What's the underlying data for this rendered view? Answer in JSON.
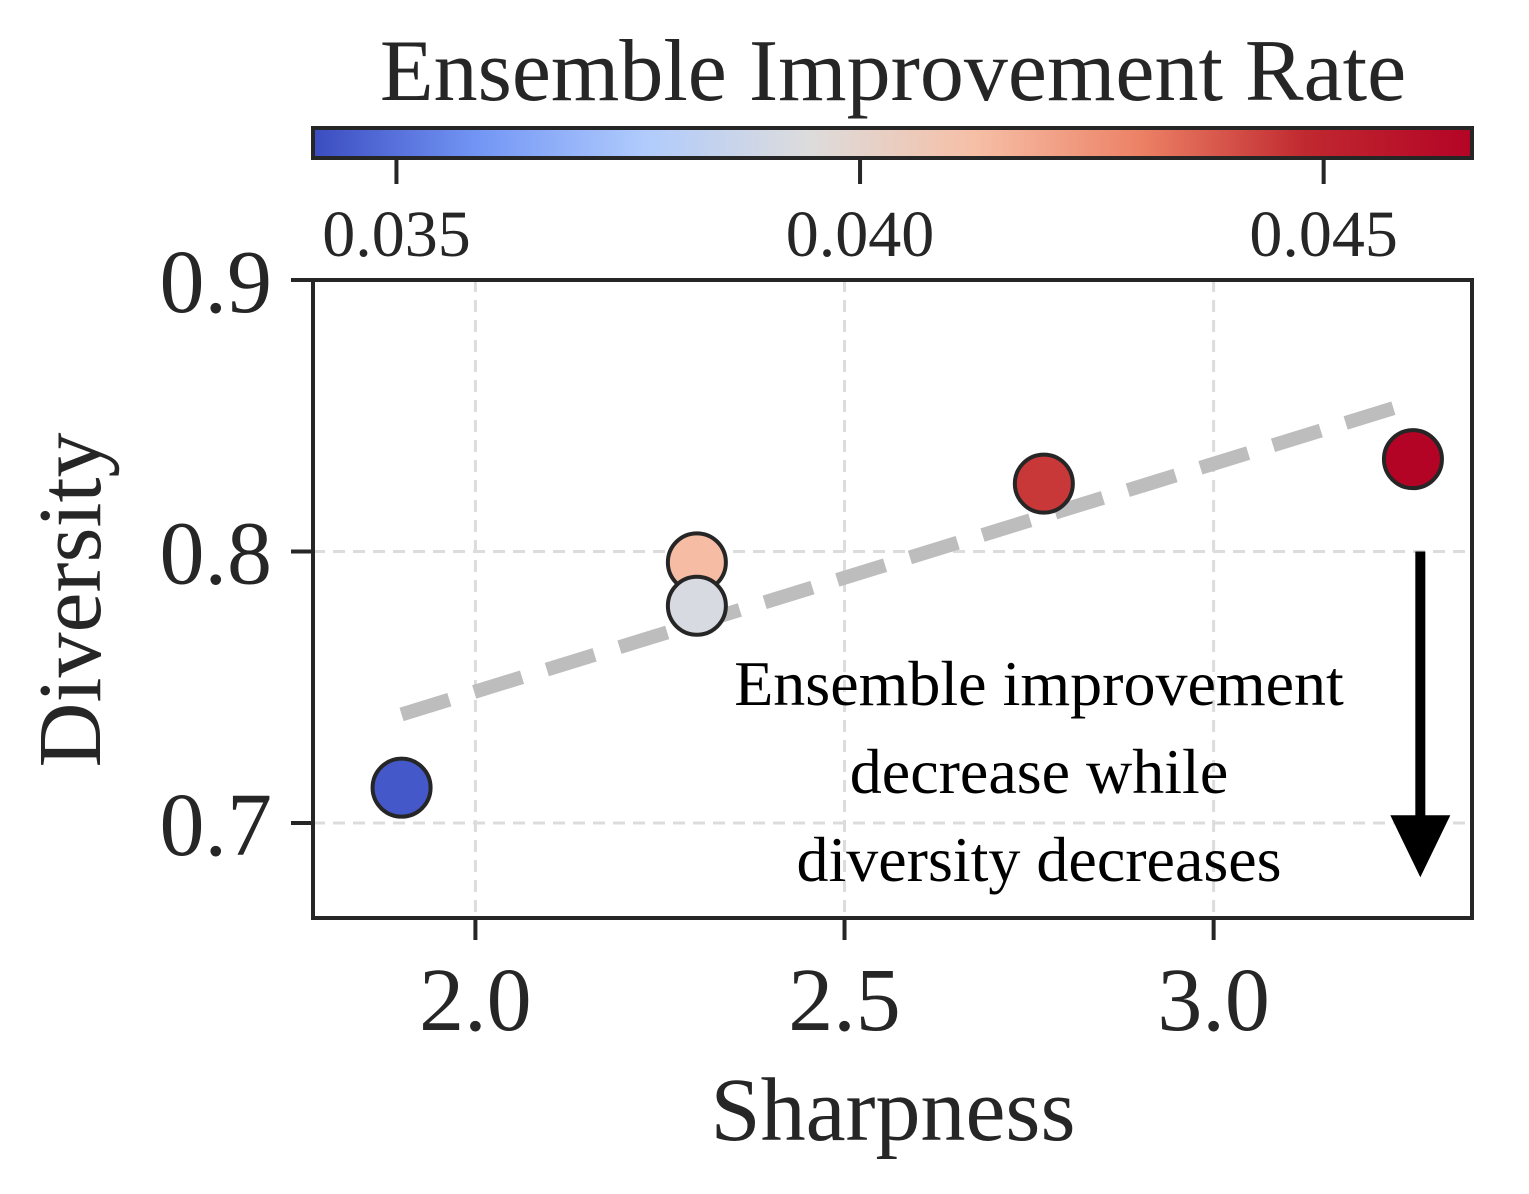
{
  "chart_data": {
    "type": "scatter",
    "xlabel": "Sharpness",
    "ylabel": "Diversity",
    "xlim": [
      1.78,
      3.35
    ],
    "ylim": [
      0.665,
      0.9
    ],
    "x_ticks": [
      2.0,
      2.5,
      3.0
    ],
    "x_tick_labels": [
      "2.0",
      "2.5",
      "3.0"
    ],
    "y_ticks": [
      0.7,
      0.8,
      0.9
    ],
    "y_tick_labels": [
      "0.7",
      "0.8",
      "0.9"
    ],
    "grid": true,
    "points": [
      {
        "x": 1.9,
        "y": 0.713,
        "color_value": 0.0344
      },
      {
        "x": 2.3,
        "y": 0.796,
        "color_value": 0.0413
      },
      {
        "x": 2.3,
        "y": 0.78,
        "color_value": 0.0392
      },
      {
        "x": 2.77,
        "y": 0.825,
        "color_value": 0.0445
      },
      {
        "x": 3.27,
        "y": 0.834,
        "color_value": 0.0466
      }
    ],
    "trend_line": {
      "style": "dashed",
      "x": [
        1.9,
        3.27
      ],
      "y": [
        0.74,
        0.855
      ]
    },
    "colorbar": {
      "label": "Ensemble Improvement Rate",
      "range": [
        0.0341,
        0.0466
      ],
      "ticks": [
        0.035,
        0.04,
        0.045
      ],
      "tick_labels": [
        "0.035",
        "0.040",
        "0.045"
      ],
      "colormap": "coolwarm",
      "colors": [
        "#3b4cc0",
        "#7396f5",
        "#b0cbfc",
        "#dddcdc",
        "#f6bfa6",
        "#ec8165",
        "#c0282f",
        "#b40426"
      ]
    },
    "annotation": {
      "lines": [
        "Ensemble improvement",
        "decrease while",
        "diversity decreases"
      ],
      "arrow": {
        "x": 3.28,
        "y_from": 0.8,
        "y_to": 0.68
      }
    }
  }
}
